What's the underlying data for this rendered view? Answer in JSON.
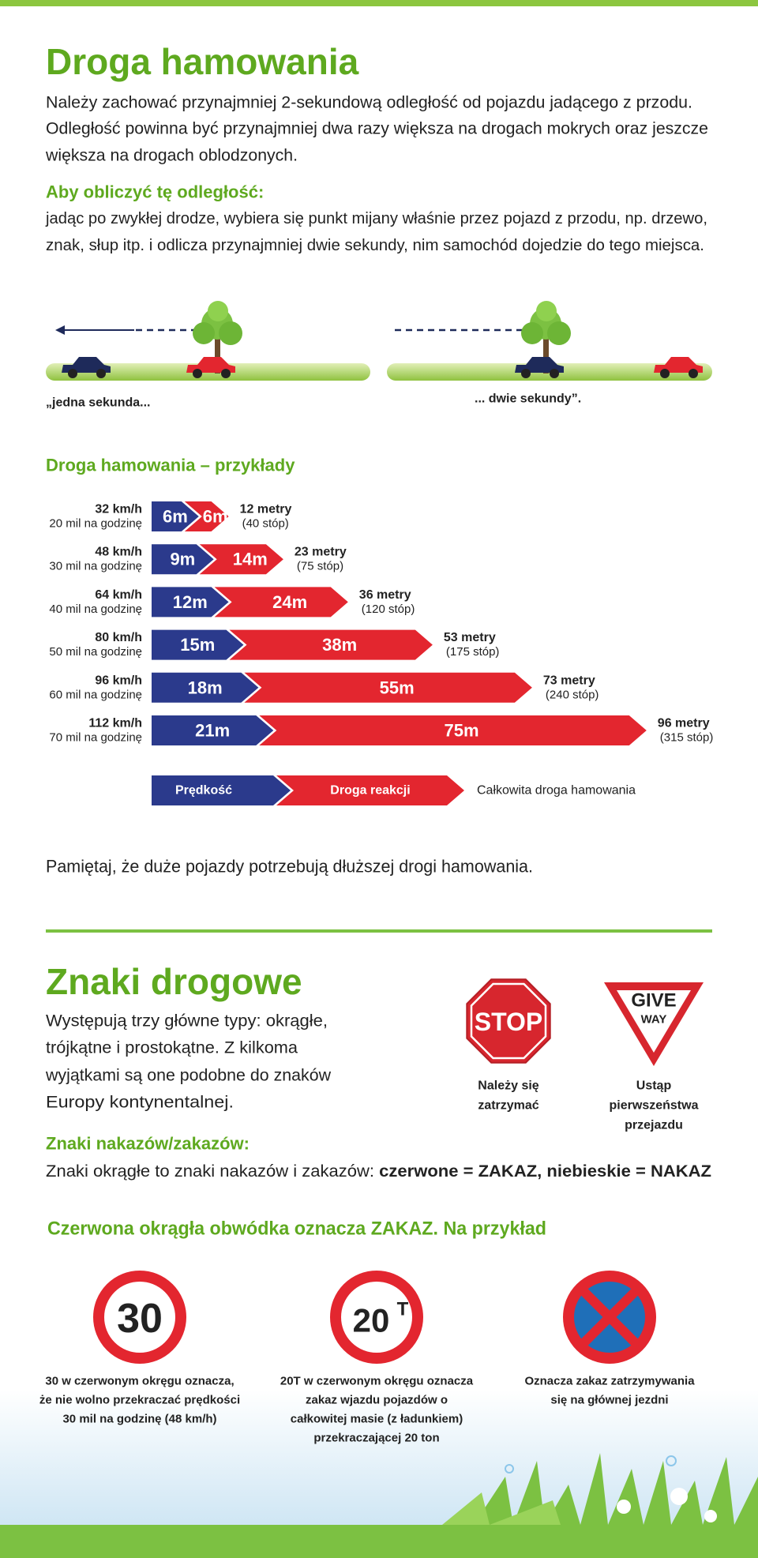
{
  "section1": {
    "title": "Droga hamowania",
    "intro_lines": [
      "Należy zachować przynajmniej 2-sekundową odległość od pojazdu jadącego z przodu.",
      "Odległość powinna być przynajmniej dwa razy większa na drogach mokrych oraz jeszcze",
      "większa na drogach oblodzonych."
    ],
    "calc_heading": "Aby obliczyć tę odległość:",
    "calc_lines": [
      "jadąc po zwykłej drodze, wybiera się punkt mijany właśnie przez pojazd z przodu, np. drzewo,",
      "znak, słup itp. i odlicza przynajmniej dwie sekundy, nim samochód dojedzie do tego miejsca."
    ],
    "captions": [
      "„jedna sekunda...",
      "... dwie sekundy”."
    ]
  },
  "braking": {
    "title": "Droga hamowania – przykłady",
    "rows": [
      {
        "speed": "32 km/h",
        "mph": "20 mil na godzinę",
        "thinking": {
          "value": 6,
          "label": "6m"
        },
        "stopping": {
          "value": 6,
          "label": "6m"
        },
        "total": {
          "value": 12,
          "label": "12 metry"
        },
        "feet": "(40 stóp)"
      },
      {
        "speed": "48 km/h",
        "mph": "30 mil na godzinę",
        "thinking": {
          "value": 9,
          "label": "9m"
        },
        "stopping": {
          "value": 14,
          "label": "14m"
        },
        "total": {
          "value": 23,
          "label": "23 metry"
        },
        "feet": "(75 stóp)"
      },
      {
        "speed": "64 km/h",
        "mph": "40 mil na godzinę",
        "thinking": {
          "value": 12,
          "label": "12m"
        },
        "stopping": {
          "value": 24,
          "label": "24m"
        },
        "total": {
          "value": 36,
          "label": "36 metry"
        },
        "feet": "(120 stóp)"
      },
      {
        "speed": "80 km/h",
        "mph": "50 mil na godzinę",
        "thinking": {
          "value": 15,
          "label": "15m"
        },
        "stopping": {
          "value": 38,
          "label": "38m"
        },
        "total": {
          "value": 53,
          "label": "53 metry"
        },
        "feet": "(175 stóp)"
      },
      {
        "speed": "96 km/h",
        "mph": "60 mil na godzinę",
        "thinking": {
          "value": 18,
          "label": "18m"
        },
        "stopping": {
          "value": 55,
          "label": "55m"
        },
        "total": {
          "value": 73,
          "label": "73 metry"
        },
        "feet": "(240 stóp)"
      },
      {
        "speed": "112 km/h",
        "mph": "70 mil na godzinę",
        "thinking": {
          "value": 21,
          "label": "21m"
        },
        "stopping": {
          "value": 75,
          "label": "75m"
        },
        "total": {
          "value": 96,
          "label": "96 metry"
        },
        "feet": "(315 stóp)"
      }
    ],
    "legend": {
      "thinking": "Prędkość",
      "stopping": "Droga reakcji",
      "total": "Całkowita droga hamowania"
    }
  },
  "note": "Pamiętaj, że duże pojazdy potrzebują dłuższej drogi hamowania.",
  "section2": {
    "title": "Znaki drogowe",
    "intro_lines": [
      "Występują trzy główne typy: okrągłe,",
      "trójkątne i prostokątne. Z kilkoma",
      "wyjątkami są one podobne do znaków",
      "Europy kontynentalnej."
    ],
    "signs": [
      {
        "text": [
          "STOP"
        ],
        "caption_lines": [
          "Należy się",
          "zatrzymać"
        ]
      },
      {
        "text": [
          "GIVE",
          "WAY"
        ],
        "caption_lines": [
          "Ustąp",
          "pierwszeństwa",
          "przejazdu"
        ]
      }
    ],
    "subheading": "Znaki nakazów/zakazów:",
    "rule_text": "Znaki okrągłe to znaki nakazów i zakazów: ",
    "rule_bold": "czerwone = ZAKAZ, niebieskie = NAKAZ",
    "example_heading": "Czerwona okrągła obwódka oznacza ZAKAZ. Na przykład",
    "examples": [
      {
        "text": [
          "30"
        ],
        "caption_lines": [
          "30 w czerwonym okręgu oznacza,",
          "że nie wolno przekraczać prędkości",
          "30 mil na godzinę (48 km/h)"
        ]
      },
      {
        "text": [
          "20",
          "T"
        ],
        "caption_lines": [
          "20T w czerwonym okręgu oznacza",
          "zakaz wjazdu pojazdów o",
          "całkowitej masie (z ładunkiem)",
          "przekraczającej 20 ton"
        ]
      },
      {
        "text": [],
        "caption_lines": [
          "Oznacza zakaz zatrzymywania",
          "się na głównej jezdni"
        ]
      }
    ]
  }
}
